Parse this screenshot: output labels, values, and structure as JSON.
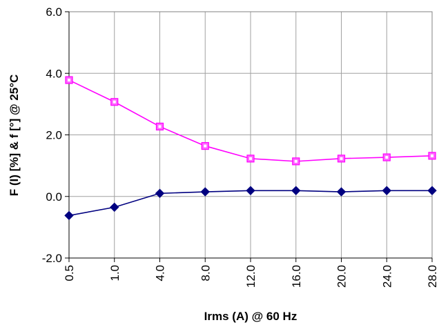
{
  "chart_data": {
    "type": "line",
    "categories": [
      "0.5",
      "1.0",
      "4.0",
      "8.0",
      "12.0",
      "16.0",
      "20.0",
      "24.0",
      "28.0"
    ],
    "series": [
      {
        "values": [
          3.78,
          3.07,
          2.27,
          1.64,
          1.23,
          1.14,
          1.23,
          1.27,
          1.32
        ],
        "color": "#FF00FF",
        "marker": "square"
      },
      {
        "values": [
          -0.62,
          -0.35,
          0.1,
          0.15,
          0.19,
          0.19,
          0.15,
          0.19,
          0.19
        ],
        "color": "#000080",
        "marker": "diamond"
      }
    ],
    "yticks": [
      "-2.0",
      "0.0",
      "2.0",
      "4.0",
      "6.0"
    ],
    "ylim": [
      -2,
      6
    ],
    "xlabel": "Irms (A) @ 60 Hz",
    "ylabel": "F (I) [%] &  f [°] @ 25°C",
    "grid": true,
    "legend": "none"
  }
}
